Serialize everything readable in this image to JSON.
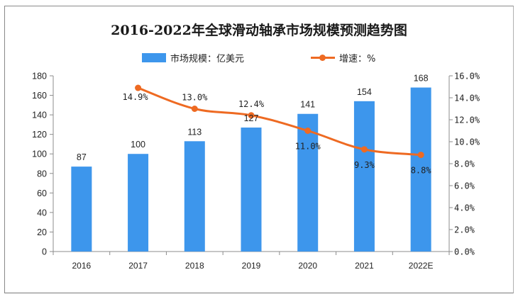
{
  "chart_data": {
    "type": "bar+line",
    "title": "2016-2022年全球滑动轴承市场规模预测趋势图",
    "categories": [
      "2016",
      "2017",
      "2018",
      "2019",
      "2020",
      "2021",
      "2022E"
    ],
    "series": [
      {
        "name": "市场规模：亿美元",
        "type": "bar",
        "axis": "left",
        "color": "#3d96ec",
        "values": [
          87,
          100,
          113,
          127,
          141,
          154,
          168
        ],
        "labels": [
          "87",
          "100",
          "113",
          "127",
          "141",
          "154",
          "168"
        ]
      },
      {
        "name": "增速：%",
        "type": "line",
        "axis": "right",
        "color": "#ee6a22",
        "values": [
          null,
          14.9,
          13.0,
          12.4,
          11.0,
          9.3,
          8.8
        ],
        "labels": [
          null,
          "14.9%",
          "13.0%",
          "12.4%",
          "11.0%",
          "9.3%",
          "8.8%"
        ]
      }
    ],
    "y_left": {
      "min": 0,
      "max": 180,
      "step": 20,
      "ticks": [
        "0",
        "20",
        "40",
        "60",
        "80",
        "100",
        "120",
        "140",
        "160",
        "180"
      ]
    },
    "y_right": {
      "min": 0,
      "max": 16,
      "step": 2,
      "ticks": [
        "0.0%",
        "2.0%",
        "4.0%",
        "6.0%",
        "8.0%",
        "10.0%",
        "12.0%",
        "14.0%",
        "16.0%"
      ]
    },
    "xlabel": "",
    "ylabel": "",
    "grid": false,
    "legend_position": "top-center"
  },
  "legend": {
    "bar_label": "市场规模：亿美元",
    "line_label": "增速：%"
  }
}
